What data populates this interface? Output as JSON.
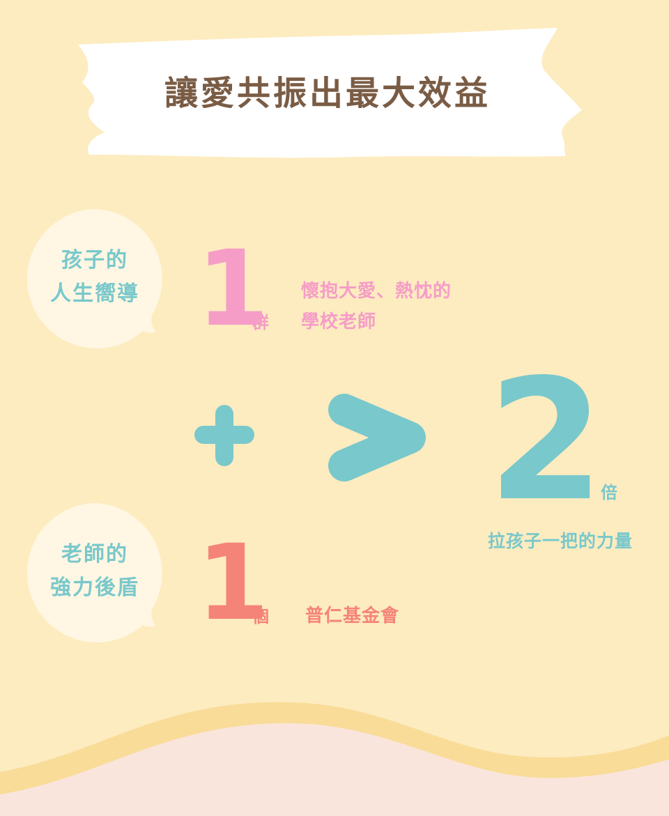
{
  "colors": {
    "background": "#fdecc0",
    "banner": "#ffffff",
    "title_text": "#7a5c45",
    "teal": "#79c8cb",
    "pink": "#f59dc7",
    "coral": "#f58478",
    "bubble": "#fff7e3",
    "wave_band": "#f8dc98",
    "wave_fill": "#fae5dd"
  },
  "banner": {
    "title": "讓愛共振出最大效益"
  },
  "bubbles": {
    "top": {
      "line1": "孩子的",
      "line2": "人生嚮導"
    },
    "bottom": {
      "line1": "老師的",
      "line2": "強力後盾"
    }
  },
  "row_top": {
    "number": "1",
    "unit": "群",
    "desc_line1": "懷抱大愛、熱忱的",
    "desc_line2": "學校老師"
  },
  "row_bottom": {
    "number": "1",
    "unit": "個",
    "desc": "普仁基金會"
  },
  "equation": {
    "plus_icon": "plus-icon",
    "greater_icon": "greater-than-icon",
    "result_number": "2",
    "result_unit": "倍",
    "caption": "拉孩子一把的力量"
  }
}
